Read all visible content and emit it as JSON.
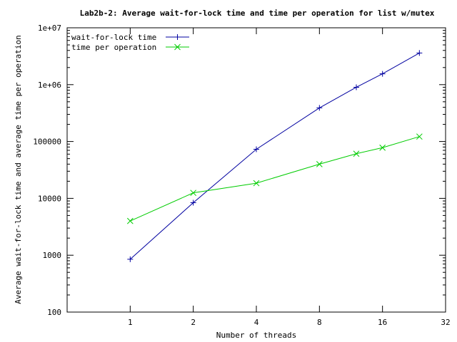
{
  "chart_data": {
    "type": "line",
    "title": "Lab2b-2: Average wait-for-lock time and time per operation for list w/mutex",
    "xlabel": "Number of threads",
    "ylabel": "Average wait-for-lock time and average time per operation",
    "x_scale": "log2",
    "y_scale": "log10",
    "xlim": [
      0.5,
      32
    ],
    "ylim": [
      100,
      10000000
    ],
    "x_ticks": [
      1,
      2,
      4,
      8,
      16,
      32
    ],
    "x_tick_labels": [
      "1",
      "2",
      "4",
      "8",
      "16",
      "32"
    ],
    "y_ticks": [
      100,
      1000,
      10000,
      100000,
      1000000,
      10000000
    ],
    "y_tick_labels": [
      "100",
      "1000",
      "10000",
      "100000",
      "1e+06",
      "1e+07"
    ],
    "grid": false,
    "legend_position": "top-left",
    "series": [
      {
        "name": "wait-for-lock time",
        "color": "#0000a0",
        "marker": "plus",
        "x": [
          1,
          2,
          4,
          8,
          12,
          16,
          24
        ],
        "y": [
          850,
          8400,
          73000,
          390000,
          900000,
          1550000,
          3600000
        ]
      },
      {
        "name": "time per operation",
        "color": "#00cc00",
        "marker": "cross",
        "x": [
          1,
          2,
          4,
          8,
          12,
          16,
          24
        ],
        "y": [
          4000,
          12500,
          18500,
          40000,
          61000,
          78000,
          122000
        ]
      }
    ]
  }
}
